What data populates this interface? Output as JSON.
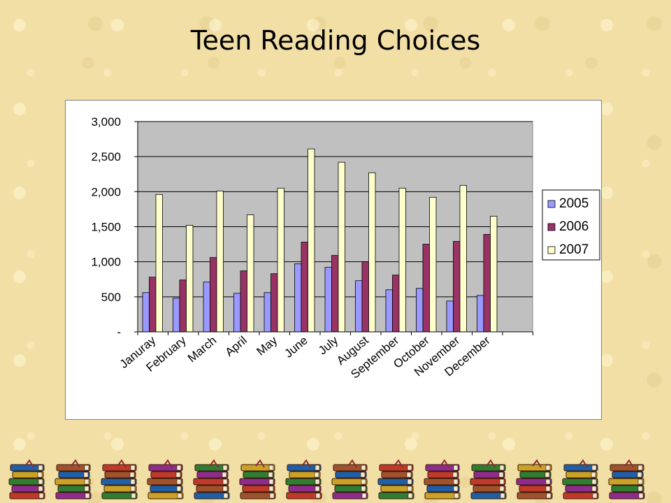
{
  "slide": {
    "title": "Teen Reading Choices"
  },
  "colors": {
    "plot_background": "#c0c0c0",
    "series_2005": "#9999ff",
    "series_2006": "#993366",
    "series_2007": "#ffffcc",
    "book_decoration": "#8b2c2c"
  },
  "decorations": {
    "book_stack_icon_count": 14,
    "icon": "book-stack-icon"
  },
  "chart_data": {
    "type": "bar",
    "title": "",
    "xlabel": "",
    "ylabel": "",
    "ylim": [
      0,
      3000
    ],
    "yticks": [
      0,
      500,
      1000,
      1500,
      2000,
      2500,
      3000
    ],
    "ytick_labels": [
      "-",
      "500",
      "1,000",
      "1,500",
      "2,000",
      "2,500",
      "3,000"
    ],
    "grid": true,
    "legend_position": "right",
    "categories": [
      "Januray",
      "February",
      "March",
      "April",
      "May",
      "June",
      "July",
      "August",
      "September",
      "October",
      "November",
      "December"
    ],
    "series": [
      {
        "name": "2005",
        "values": [
          560,
          480,
          710,
          550,
          560,
          970,
          920,
          730,
          600,
          620,
          440,
          520
        ]
      },
      {
        "name": "2006",
        "values": [
          780,
          740,
          1060,
          870,
          830,
          1280,
          1090,
          1000,
          810,
          1250,
          1290,
          1390
        ]
      },
      {
        "name": "2007",
        "values": [
          1960,
          1520,
          2010,
          1670,
          2050,
          2610,
          2420,
          2270,
          2050,
          1920,
          2090,
          1650
        ]
      }
    ]
  }
}
